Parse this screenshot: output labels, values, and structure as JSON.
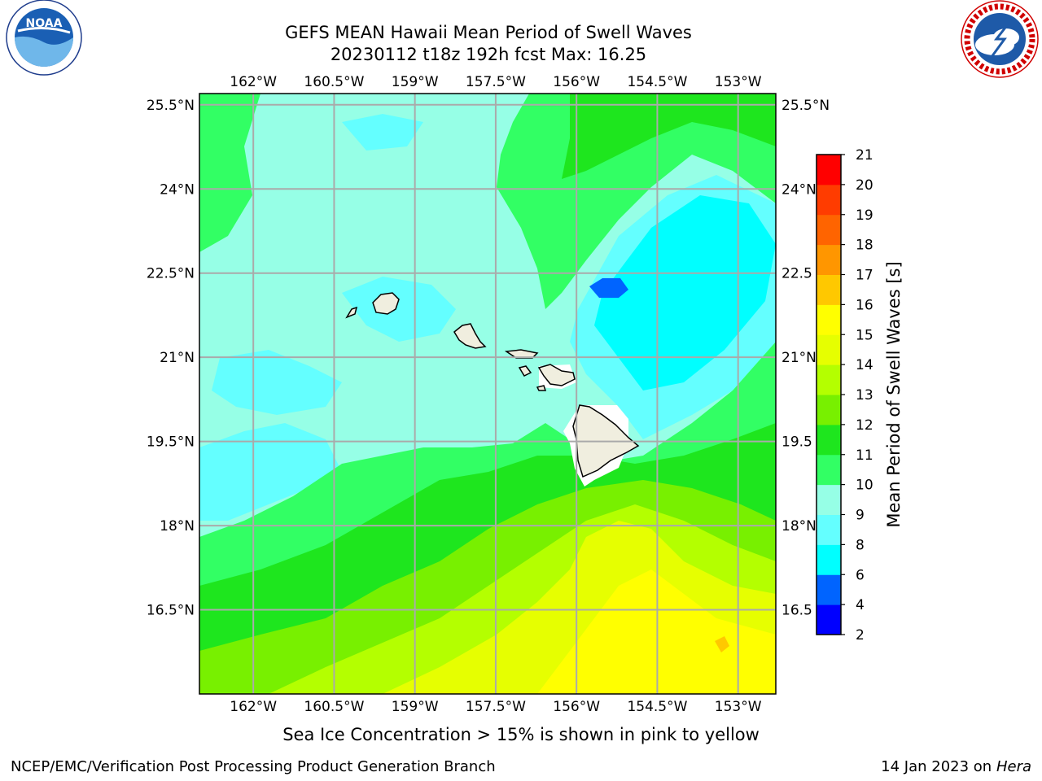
{
  "header": {
    "title_line1": "GEFS MEAN Hawaii Mean Period of Swell Waves",
    "title_line2": "20230112 t18z 192h fcst   Max: 16.25"
  },
  "logos": {
    "left": {
      "icon": "noaa-logo",
      "text": "NOAA",
      "ring": "NATIONAL OCEANIC AND ATMOSPHERIC ADMINISTRATION · U.S. DEPARTMENT OF COMMERCE"
    },
    "right": {
      "icon": "nws-logo",
      "ring": "NATIONAL WEATHER SERVICE"
    }
  },
  "map": {
    "lon_ticks": [
      {
        "value": -162.0,
        "label": "162°W"
      },
      {
        "value": -160.5,
        "label": "160.5°W"
      },
      {
        "value": -159.0,
        "label": "159°W"
      },
      {
        "value": -157.5,
        "label": "157.5°W"
      },
      {
        "value": -156.0,
        "label": "156°W"
      },
      {
        "value": -154.5,
        "label": "154.5°W"
      },
      {
        "value": -153.0,
        "label": "153°W"
      }
    ],
    "lat_ticks": [
      {
        "value": 25.5,
        "label": "25.5°N"
      },
      {
        "value": 24.0,
        "label": "24°N"
      },
      {
        "value": 22.5,
        "label": "22.5°N"
      },
      {
        "value": 21.0,
        "label": "21°N"
      },
      {
        "value": 19.5,
        "label": "19.5°N"
      },
      {
        "value": 18.0,
        "label": "18°N"
      },
      {
        "value": 16.5,
        "label": "16.5°N"
      }
    ],
    "right_lat_labels": [
      "25.5°N",
      "24°N",
      "22.5",
      "21°N",
      "19.5",
      "18°N",
      "16.5"
    ],
    "extent": {
      "lon_min": -163.0,
      "lon_max": -152.3,
      "lat_min": 15.0,
      "lat_max": 25.7
    },
    "grid": true,
    "islands": [
      "Kauai",
      "Niihau",
      "Oahu",
      "Molokai",
      "Lanai",
      "Maui",
      "Kahoolawe",
      "Hawaii"
    ]
  },
  "colorbar": {
    "label": "Mean Period of Swell Waves [s]",
    "levels": [
      2,
      4,
      6,
      8,
      9,
      10,
      11,
      12,
      13,
      14,
      15,
      16,
      17,
      18,
      19,
      20,
      21
    ],
    "colors": [
      "#0000ff",
      "#0064ff",
      "#00ffff",
      "#64ffff",
      "#96ffe6",
      "#32ff64",
      "#1ee61e",
      "#78f000",
      "#b4ff00",
      "#e6ff00",
      "#ffff00",
      "#ffc800",
      "#ff9600",
      "#ff6400",
      "#ff3c00",
      "#ff0000"
    ]
  },
  "footer": {
    "note": "Sea Ice Concentration > 15% is shown in pink to yellow",
    "left": "NCEP/EMC/Verification Post Processing Product Generation Branch",
    "right_date": "14 Jan 2023 on",
    "right_host": "Hera"
  }
}
